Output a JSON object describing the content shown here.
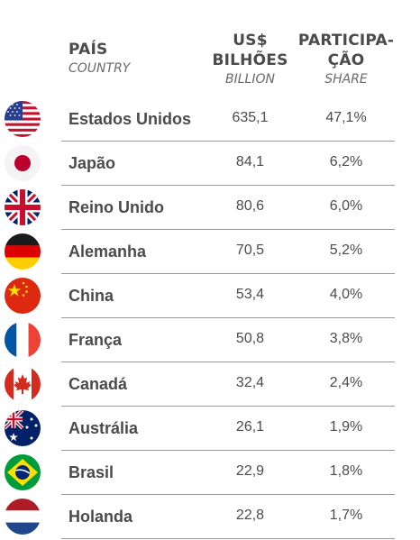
{
  "header": {
    "country_main": "PAÍS",
    "country_sub": "COUNTRY",
    "value_main_1": "US$",
    "value_main_2": "BILHÕES",
    "value_sub": "BILLION",
    "share_main_1": "PARTICIPA-",
    "share_main_2": "ÇÃO",
    "share_sub": "SHARE"
  },
  "rows": [
    {
      "flag": "usa-flag-icon",
      "country": "Estados Unidos",
      "value": "635,1",
      "share": "47,1%"
    },
    {
      "flag": "japan-flag-icon",
      "country": "Japão",
      "value": "84,1",
      "share": "6,2%"
    },
    {
      "flag": "uk-flag-icon",
      "country": "Reino Unido",
      "value": "80,6",
      "share": "6,0%"
    },
    {
      "flag": "germany-flag-icon",
      "country": "Alemanha",
      "value": "70,5",
      "share": "5,2%"
    },
    {
      "flag": "china-flag-icon",
      "country": "China",
      "value": "53,4",
      "share": "4,0%"
    },
    {
      "flag": "france-flag-icon",
      "country": "França",
      "value": "50,8",
      "share": "3,8%"
    },
    {
      "flag": "canada-flag-icon",
      "country": "Canadá",
      "value": "32,4",
      "share": "2,4%"
    },
    {
      "flag": "australia-flag-icon",
      "country": "Austrália",
      "value": "26,1",
      "share": "1,9%"
    },
    {
      "flag": "brazil-flag-icon",
      "country": "Brasil",
      "value": "22,9",
      "share": "1,8%"
    },
    {
      "flag": "netherlands-flag-icon",
      "country": "Holanda",
      "value": "22,8",
      "share": "1,7%"
    }
  ]
}
